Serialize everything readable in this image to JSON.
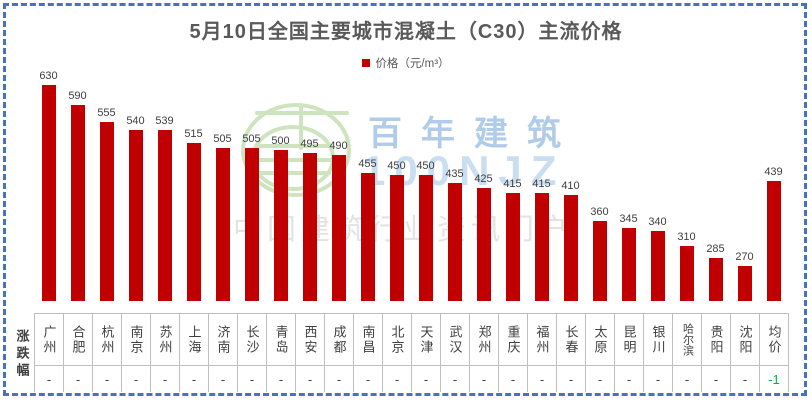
{
  "frame": {
    "border_color": "#4472C4"
  },
  "title": "5月10日全国主要城市混凝土（C30）主流价格",
  "legend": {
    "label": "价格（元/m³）",
    "swatch_color": "#C00000"
  },
  "watermark": {
    "brand": "百年建筑",
    "code": "100NJZ",
    "tagline": "中国建筑行业资讯门户"
  },
  "chart_data": {
    "type": "bar",
    "title": "5月10日全国主要城市混凝土（C30）主流价格",
    "legend": [
      "价格（元/m³）"
    ],
    "legend_position": "top",
    "grid": false,
    "xlabel": "",
    "ylabel": "价格（元/m³）",
    "ylim": [
      200,
      650
    ],
    "bar_color": "#C00000",
    "categories": [
      "广州",
      "合肥",
      "杭州",
      "南京",
      "苏州",
      "上海",
      "济南",
      "长沙",
      "青岛",
      "西安",
      "成都",
      "南昌",
      "北京",
      "天津",
      "武汉",
      "郑州",
      "重庆",
      "福州",
      "长春",
      "太原",
      "昆明",
      "银川",
      "哈尔滨",
      "贵阳",
      "沈阳",
      "均价"
    ],
    "values": [
      630,
      590,
      555,
      540,
      539,
      515,
      505,
      505,
      500,
      495,
      490,
      455,
      450,
      450,
      435,
      425,
      415,
      415,
      410,
      360,
      345,
      340,
      310,
      285,
      270,
      439
    ],
    "change_row_label": "涨跌幅",
    "changes": [
      "-",
      "-",
      "-",
      "-",
      "-",
      "-",
      "-",
      "-",
      "-",
      "-",
      "-",
      "-",
      "-",
      "-",
      "-",
      "-",
      "-",
      "-",
      "-",
      "-",
      "-",
      "-",
      "-",
      "-",
      "-",
      "-1"
    ],
    "negative_change_color": "#00B050"
  }
}
